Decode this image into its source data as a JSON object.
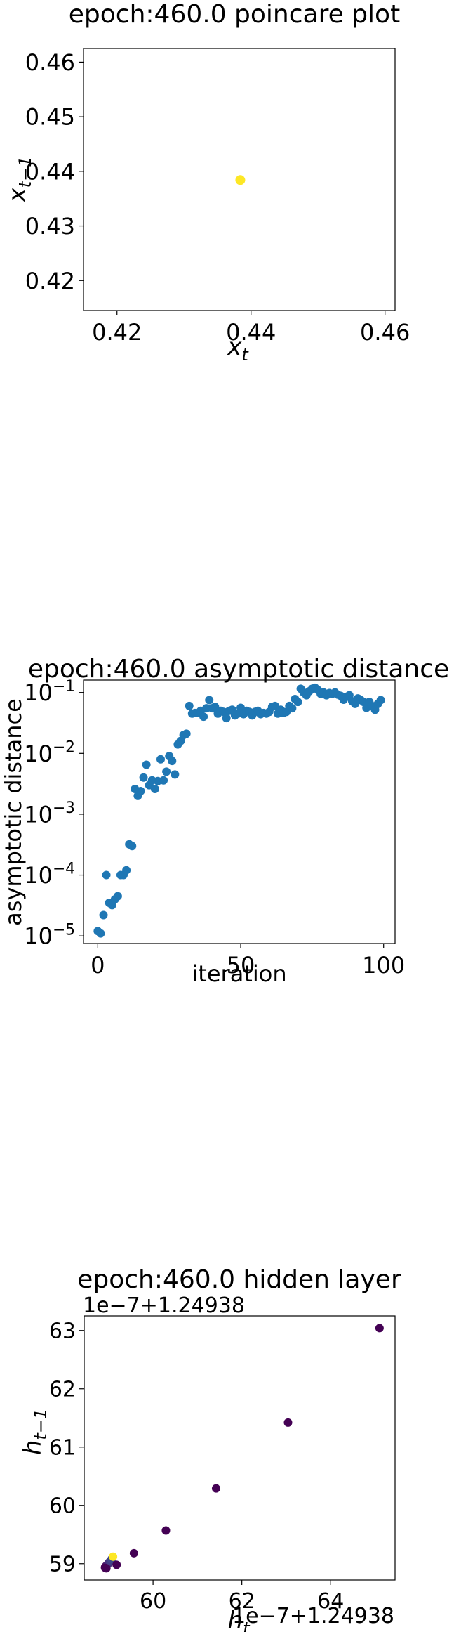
{
  "chart_data": [
    {
      "type": "scatter",
      "title": "epoch:460.0 poincare plot",
      "xlabel": "x_t",
      "ylabel": "x_{t−1}",
      "xlim": [
        0.415,
        0.4615
      ],
      "ylim": [
        0.4145,
        0.4625
      ],
      "xticks": [
        0.42,
        0.44,
        0.46
      ],
      "xtick_labels": [
        "0.42",
        "0.44",
        "0.46"
      ],
      "yticks": [
        0.42,
        0.43,
        0.44,
        0.45,
        0.46
      ],
      "ytick_labels": [
        "0.42",
        "0.43",
        "0.44",
        "0.45",
        "0.46"
      ],
      "points": [
        {
          "x": 0.4384,
          "y": 0.4384,
          "color": "#fde725"
        }
      ],
      "grid": false
    },
    {
      "type": "scatter",
      "title": "epoch:460.0 asymptotic distance",
      "xlabel": "iteration",
      "ylabel": "asymptotic distance",
      "yscale": "log",
      "xlim": [
        -5,
        104
      ],
      "ylim": [
        7.5e-06,
        0.16
      ],
      "xticks": [
        0,
        50,
        100
      ],
      "xtick_labels": [
        "0",
        "50",
        "100"
      ],
      "yticks": [
        1e-05,
        0.0001,
        0.001,
        0.01,
        0.1
      ],
      "ytick_labels": [
        {
          "base": "10",
          "exp": "−5"
        },
        {
          "base": "10",
          "exp": "−4"
        },
        {
          "base": "10",
          "exp": "−3"
        },
        {
          "base": "10",
          "exp": "−2"
        },
        {
          "base": "10",
          "exp": "−1"
        }
      ],
      "color": "#1f77b4",
      "x": [
        0,
        1,
        2,
        3,
        4,
        5,
        6,
        7,
        8,
        9,
        10,
        11,
        12,
        13,
        14,
        15,
        16,
        17,
        18,
        19,
        20,
        21,
        22,
        23,
        24,
        25,
        26,
        27,
        28,
        29,
        30,
        31,
        32,
        33,
        34,
        35,
        36,
        37,
        38,
        39,
        40,
        41,
        42,
        43,
        44,
        45,
        46,
        47,
        48,
        49,
        50,
        51,
        52,
        53,
        54,
        55,
        56,
        57,
        58,
        59,
        60,
        61,
        62,
        63,
        64,
        65,
        66,
        67,
        68,
        69,
        70,
        71,
        72,
        73,
        74,
        75,
        76,
        77,
        78,
        79,
        80,
        81,
        82,
        83,
        84,
        85,
        86,
        87,
        88,
        89,
        90,
        91,
        92,
        93,
        94,
        95,
        96,
        97,
        98,
        99
      ],
      "values": [
        1.2e-05,
        1.1e-05,
        2.2e-05,
        0.0001,
        3.5e-05,
        3.2e-05,
        4e-05,
        4.5e-05,
        0.0001,
        0.0001,
        0.00012,
        0.00032,
        0.0003,
        0.0026,
        0.002,
        0.0024,
        0.004,
        0.0065,
        0.003,
        0.0036,
        0.0026,
        0.0035,
        0.008,
        0.0036,
        0.005,
        0.009,
        0.0075,
        0.0045,
        0.014,
        0.016,
        0.02,
        0.021,
        0.06,
        0.045,
        0.046,
        0.046,
        0.05,
        0.04,
        0.055,
        0.075,
        0.055,
        0.058,
        0.045,
        0.05,
        0.048,
        0.038,
        0.05,
        0.052,
        0.042,
        0.045,
        0.056,
        0.044,
        0.05,
        0.048,
        0.042,
        0.048,
        0.05,
        0.044,
        0.046,
        0.045,
        0.048,
        0.058,
        0.06,
        0.045,
        0.052,
        0.046,
        0.048,
        0.06,
        0.055,
        0.078,
        0.07,
        0.115,
        0.1,
        0.09,
        0.105,
        0.115,
        0.12,
        0.11,
        0.095,
        0.1,
        0.09,
        0.098,
        0.095,
        0.1,
        0.092,
        0.088,
        0.076,
        0.085,
        0.09,
        0.072,
        0.065,
        0.08,
        0.075,
        0.07,
        0.056,
        0.07,
        0.06,
        0.052,
        0.065,
        0.075
      ],
      "grid": false
    },
    {
      "type": "scatter",
      "title": "epoch:460.0 hidden layer",
      "xlabel": "h_t",
      "ylabel": "h_{t−1}",
      "x_offset_text": "1e−7+1.24938",
      "y_offset_text": "1e−7+1.24938",
      "xlim": [
        58.45,
        65.45
      ],
      "ylim": [
        58.72,
        63.25
      ],
      "xticks": [
        60,
        62,
        64
      ],
      "xtick_labels": [
        "60",
        "62",
        "64"
      ],
      "yticks": [
        59,
        60,
        61,
        62,
        63
      ],
      "ytick_labels": [
        "59",
        "60",
        "61",
        "62",
        "63"
      ],
      "colormap": "viridis",
      "points": [
        {
          "x": 58.92,
          "y": 58.94,
          "color": "#440154"
        },
        {
          "x": 58.94,
          "y": 58.96,
          "color": "#46085c"
        },
        {
          "x": 58.96,
          "y": 58.97,
          "color": "#471063"
        },
        {
          "x": 58.98,
          "y": 58.99,
          "color": "#482173"
        },
        {
          "x": 59.0,
          "y": 59.01,
          "color": "#472c7a"
        },
        {
          "x": 59.02,
          "y": 59.03,
          "color": "#46337f"
        },
        {
          "x": 59.04,
          "y": 59.05,
          "color": "#433e85"
        },
        {
          "x": 59.07,
          "y": 59.08,
          "color": "#3f4788"
        },
        {
          "x": 58.92,
          "y": 58.93,
          "color": "#440154"
        },
        {
          "x": 58.95,
          "y": 58.92,
          "color": "#440154"
        },
        {
          "x": 59.18,
          "y": 58.98,
          "color": "#440154"
        },
        {
          "x": 59.57,
          "y": 59.18,
          "color": "#440154"
        },
        {
          "x": 60.29,
          "y": 59.57,
          "color": "#440154"
        },
        {
          "x": 61.42,
          "y": 60.29,
          "color": "#440154"
        },
        {
          "x": 63.04,
          "y": 61.42,
          "color": "#440154"
        },
        {
          "x": 65.1,
          "y": 63.04,
          "color": "#440154"
        },
        {
          "x": 59.1,
          "y": 59.12,
          "color": "#fde725"
        }
      ],
      "grid": false
    }
  ]
}
